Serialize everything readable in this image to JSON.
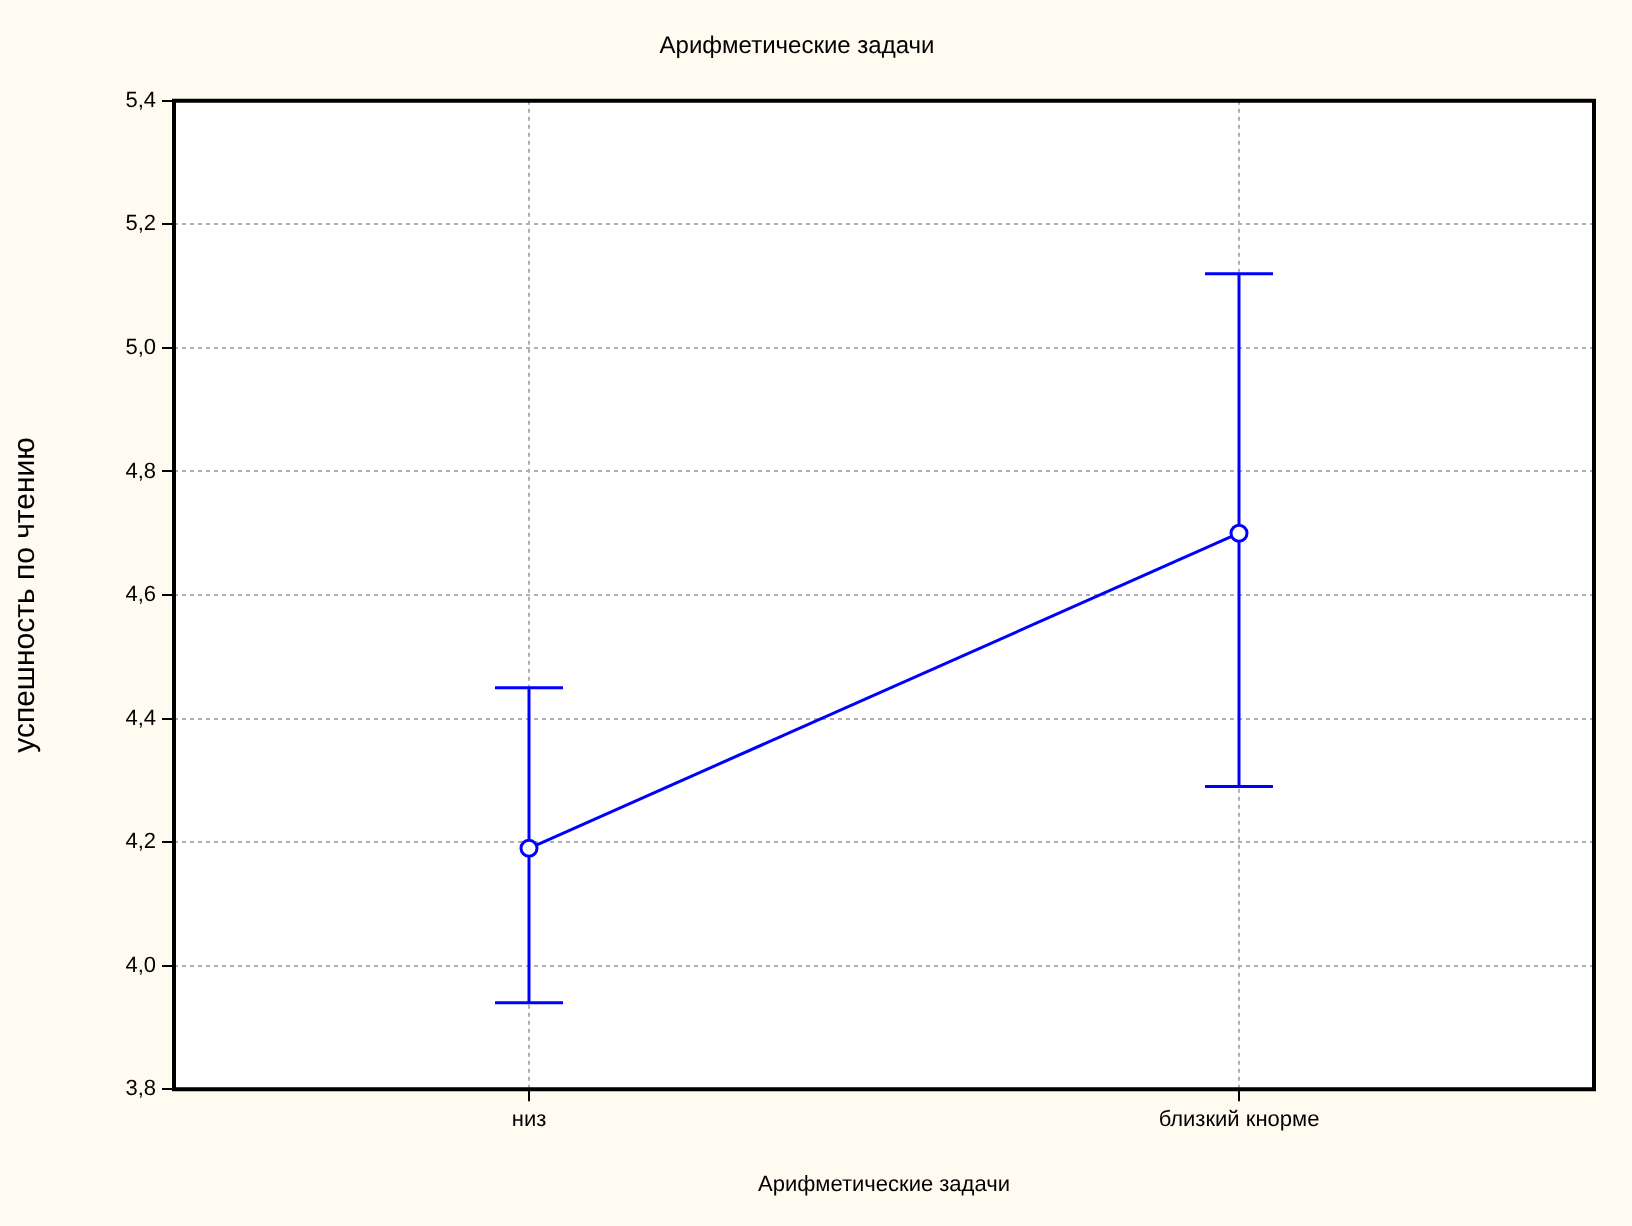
{
  "chart_data": {
    "type": "line",
    "title": "Арифметические задачи",
    "xlabel": "Арифметические задачи",
    "ylabel": "успешность по чтению",
    "categories": [
      "низ",
      "близкий кнорме"
    ],
    "series": [
      {
        "color": "#0000ff",
        "values": [
          4.19,
          4.7
        ],
        "errors": [
          [
            3.94,
            4.45
          ],
          [
            4.29,
            5.12
          ]
        ]
      }
    ],
    "ylim": [
      3.8,
      5.4
    ],
    "yticks": [
      {
        "value": 3.8,
        "label": "3,8"
      },
      {
        "value": 4.0,
        "label": "4,0"
      },
      {
        "value": 4.2,
        "label": "4,2"
      },
      {
        "value": 4.4,
        "label": "4,4"
      },
      {
        "value": 4.6,
        "label": "4,6"
      },
      {
        "value": 4.8,
        "label": "4,8"
      },
      {
        "value": 5.0,
        "label": "5,0"
      },
      {
        "value": 5.2,
        "label": "5,2"
      },
      {
        "value": 5.4,
        "label": "5,4"
      }
    ],
    "grid": true,
    "legend": false,
    "marker": "circle",
    "line_style": "solid"
  }
}
